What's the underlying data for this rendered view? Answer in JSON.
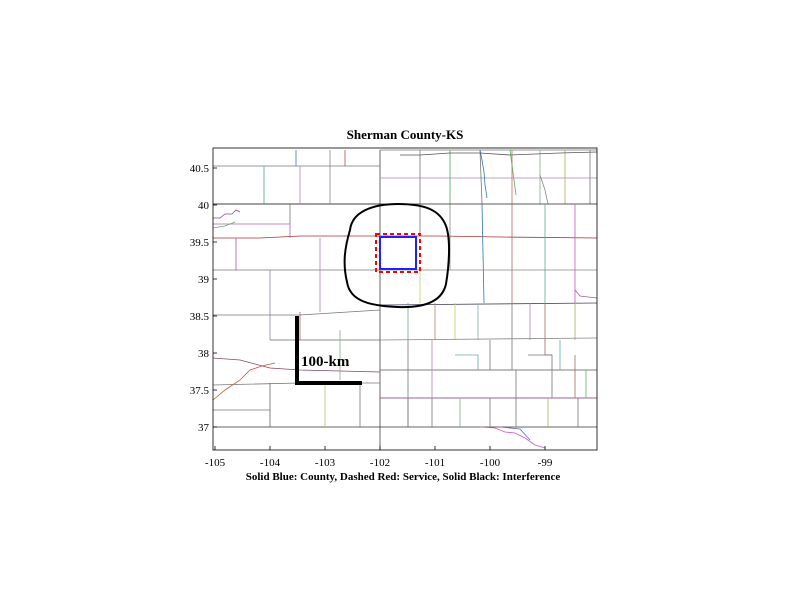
{
  "title": "Sherman County-KS",
  "caption": "Solid Blue: County, Dashed Red: Service, Solid Black: Interference",
  "scale_bar": {
    "label": "100-km"
  },
  "axes": {
    "x_ticks": [
      "-105",
      "-104",
      "-103",
      "-102",
      "-101",
      "-100",
      "-99"
    ],
    "y_ticks": [
      "40.5",
      "40",
      "39.5",
      "39",
      "38.5",
      "38",
      "37.5",
      "37"
    ]
  },
  "legend": {
    "county_color": "#2020ff",
    "service_color": "#ff0000",
    "interference_color": "#000000"
  }
}
